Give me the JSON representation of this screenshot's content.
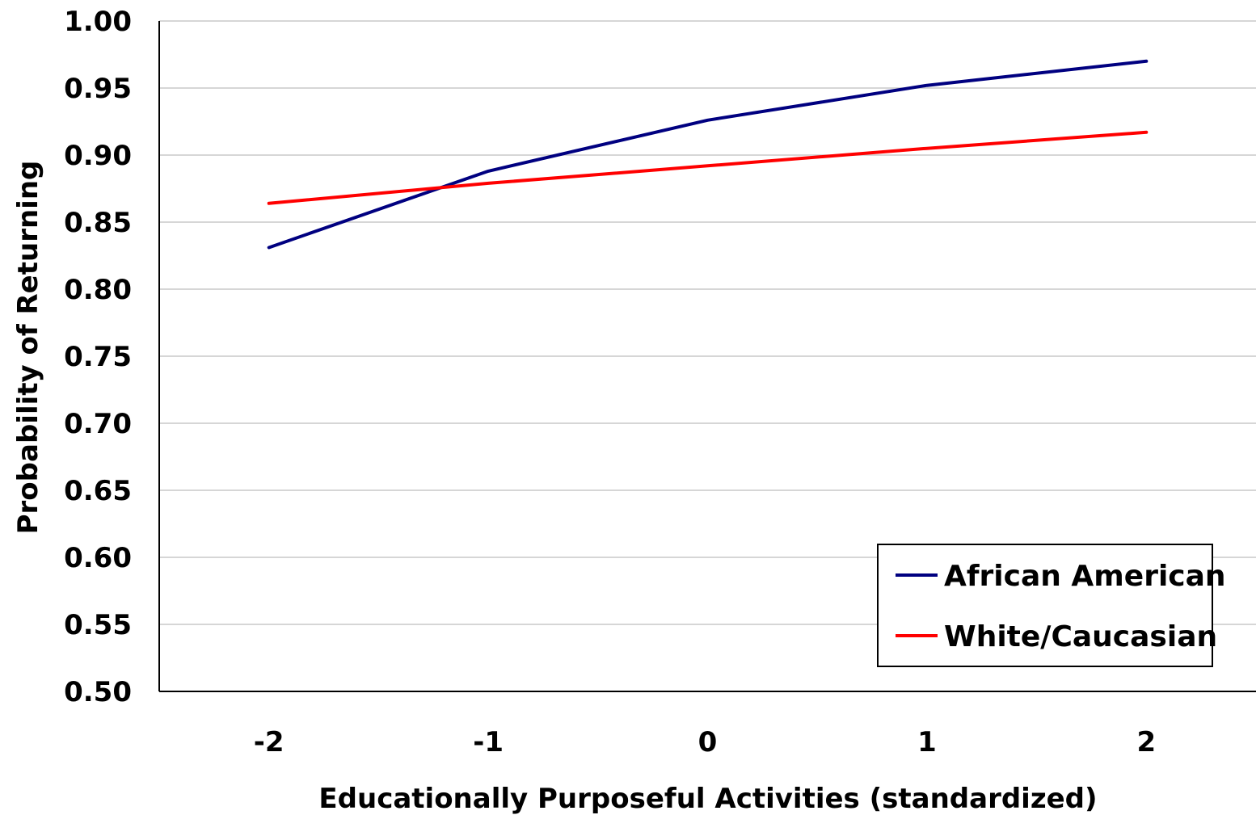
{
  "chart_data": {
    "type": "line",
    "title": "",
    "xlabel": "Educationally Purposeful Activities (standardized)",
    "ylabel": "Probability of Returning",
    "x": [
      -2,
      -1,
      0,
      1,
      2
    ],
    "x_tick_labels": [
      "-2",
      "-1",
      "0",
      "1",
      "2"
    ],
    "xlim": [
      -2.5,
      2.5
    ],
    "ylim": [
      0.5,
      1.0
    ],
    "y_ticks": [
      0.5,
      0.55,
      0.6,
      0.65,
      0.7,
      0.75,
      0.8,
      0.85,
      0.9,
      0.95,
      1.0
    ],
    "y_tick_labels": [
      "0.50",
      "0.55",
      "0.60",
      "0.65",
      "0.70",
      "0.75",
      "0.80",
      "0.85",
      "0.90",
      "0.95",
      "1.00"
    ],
    "grid": "horizontal",
    "legend_position": "bottom-right",
    "series": [
      {
        "name": "African American",
        "color": "#000080",
        "values": [
          0.831,
          0.888,
          0.926,
          0.952,
          0.97
        ]
      },
      {
        "name": "White/Caucasian",
        "color": "#ff0000",
        "values": [
          0.864,
          0.879,
          0.892,
          0.905,
          0.917
        ]
      }
    ]
  }
}
